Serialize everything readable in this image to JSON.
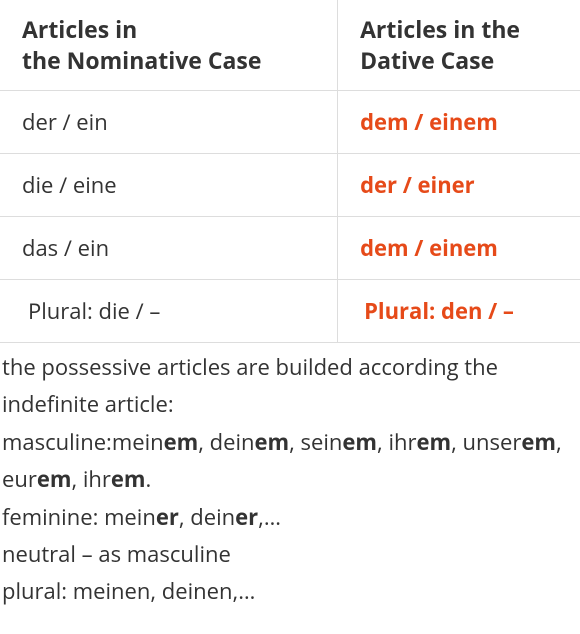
{
  "table": {
    "headers": {
      "nominative_line1": "Articles in",
      "nominative_line2": "the Nominative Case",
      "dative_line1": "Articles in the",
      "dative_line2": "Dative Case"
    },
    "rows": [
      {
        "nominative": "der / ein",
        "dative": "dem / einem"
      },
      {
        "nominative": "die / eine",
        "dative": "der / einer"
      },
      {
        "nominative": "das / ein",
        "dative": "dem / einem"
      },
      {
        "nominative": " Plural: die / –",
        "dative": " Plural: den / –",
        "plural": true
      }
    ],
    "dative_color": "#e64a19",
    "border_color": "#dddddd",
    "text_color": "#333333",
    "header_fontsize": 23,
    "cell_fontsize": 22
  },
  "notes": {
    "line1": "the possessive articles are builded according the indefinite article:",
    "masc_label": "masculine:",
    "masc": [
      {
        "stem": "mein",
        "end": "em"
      },
      {
        "stem": ", dein",
        "end": "em"
      },
      {
        "stem": ", sein",
        "end": "em"
      },
      {
        "stem": ", ihr",
        "end": "em"
      },
      {
        "stem": ", unser",
        "end": "em"
      },
      {
        "stem": ", eur",
        "end": "em"
      },
      {
        "stem": ", ihr",
        "end": "em"
      }
    ],
    "masc_tail": ".",
    "fem_label": "feminine: ",
    "fem": [
      {
        "stem": "mein",
        "end": "er"
      },
      {
        "stem": ", dein",
        "end": "er"
      }
    ],
    "fem_tail": ",…",
    "neutral": "neutral – as masculine",
    "plural": "plural: meinen, deinen,…"
  }
}
